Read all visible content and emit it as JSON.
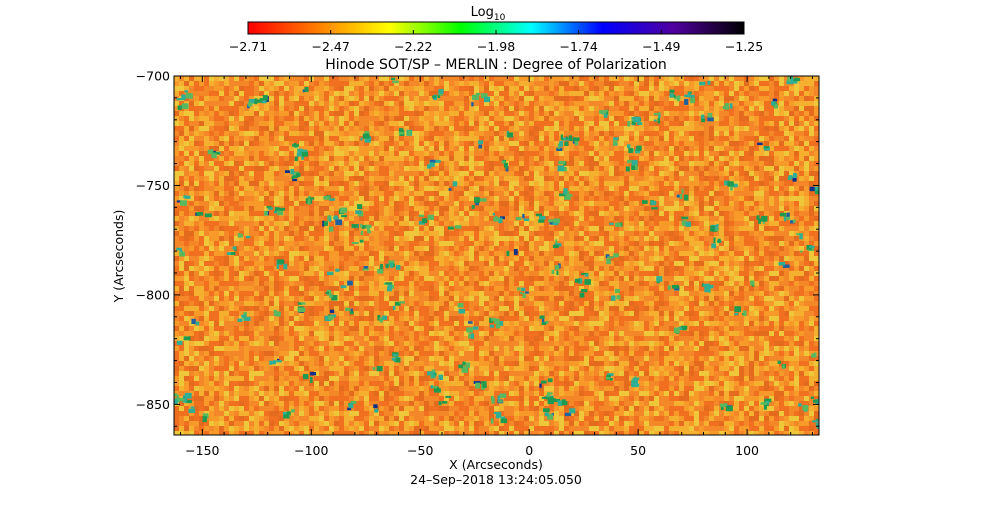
{
  "chart_data": {
    "type": "heatmap",
    "title": "Hinode SOT/SP – MERLIN : Degree of Polarization",
    "xlabel": "X (Arcseconds)",
    "ylabel": "Y (Arcseconds)",
    "timestamp": "24–Sep–2018 13:24:05.050",
    "xlim": [
      -163,
      133
    ],
    "ylim": [
      -864,
      -700
    ],
    "x_ticks": [
      -150,
      -100,
      -50,
      0,
      50,
      100
    ],
    "x_tick_labels": [
      "−150",
      "−100",
      "−50",
      "0",
      "50",
      "100"
    ],
    "y_ticks": [
      -700,
      -750,
      -800,
      -850
    ],
    "y_tick_labels": [
      "−700",
      "−750",
      "−800",
      "−850"
    ],
    "colorbar": {
      "label_base": "Log",
      "label_sub": "10",
      "colormap": "rainbow-red-to-black",
      "range": [
        -2.71,
        -1.25
      ],
      "tick_labels": [
        "−2.71",
        "−2.47",
        "−2.22",
        "−1.98",
        "−1.74",
        "−1.49",
        "−1.25"
      ],
      "stops": [
        "#ff0000",
        "#ff8000",
        "#ffff00",
        "#00ff00",
        "#00ffff",
        "#0000ff",
        "#5000a0",
        "#000000"
      ]
    },
    "field": {
      "background_colors": [
        "#f07020",
        "#f48828",
        "#f89a2a",
        "#f6b030",
        "#eec83a",
        "#e46a1e"
      ],
      "magnetic_patch_colors": [
        "#1e9b50",
        "#2fae96",
        "#58b860",
        "#1f60a0",
        "#10308a"
      ],
      "grid": false
    }
  }
}
